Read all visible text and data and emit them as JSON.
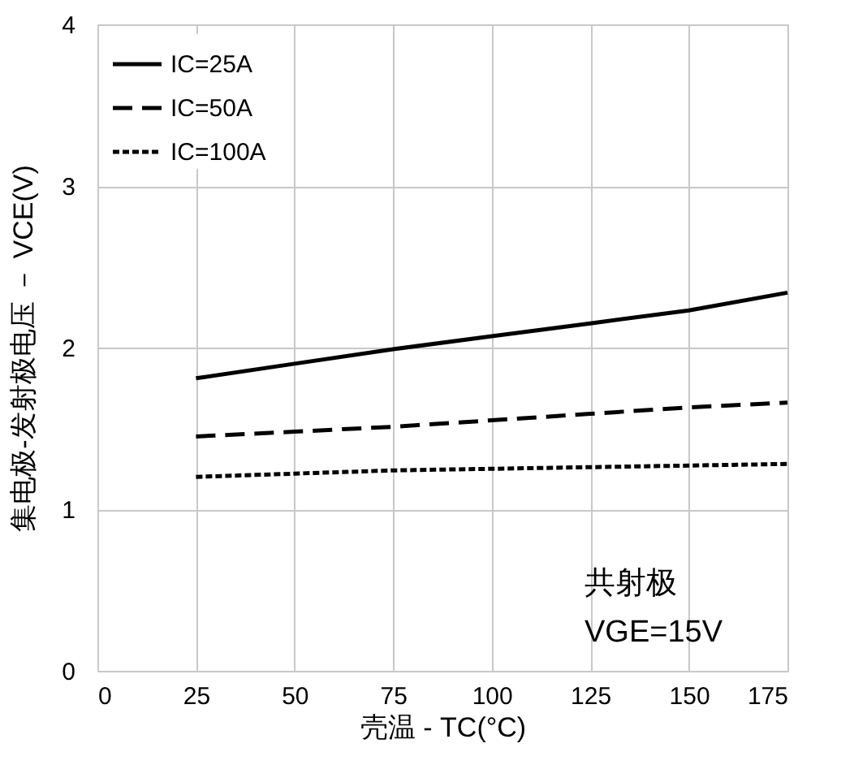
{
  "chart_data": {
    "type": "line",
    "xlabel": "壳温 - TC(°C)",
    "ylabel": "集电极-发射极电压 － VCE(V)",
    "x": [
      25,
      50,
      75,
      100,
      125,
      150,
      175
    ],
    "series": [
      {
        "name": "IC=25A",
        "color": "#000000",
        "line_style": "solid",
        "values": [
          1.81,
          1.9,
          1.99,
          2.07,
          2.15,
          2.23,
          2.34
        ]
      },
      {
        "name": "IC=50A",
        "color": "#000000",
        "line_style": "dashed",
        "values": [
          1.45,
          1.48,
          1.51,
          1.55,
          1.59,
          1.63,
          1.66
        ]
      },
      {
        "name": "IC=100A",
        "color": "#000000",
        "line_style": "dotted",
        "values": [
          1.2,
          1.22,
          1.24,
          1.25,
          1.26,
          1.27,
          1.28
        ]
      }
    ],
    "xlim": [
      0,
      175
    ],
    "xticks": [
      0,
      25,
      50,
      75,
      100,
      125,
      150,
      175
    ],
    "ylim": [
      0,
      4
    ],
    "yticks": [
      0,
      1,
      2,
      3,
      4
    ],
    "grid": true,
    "legend": "top left",
    "marker": "none",
    "annotations": [
      "共射极",
      "VGE=15V"
    ]
  }
}
